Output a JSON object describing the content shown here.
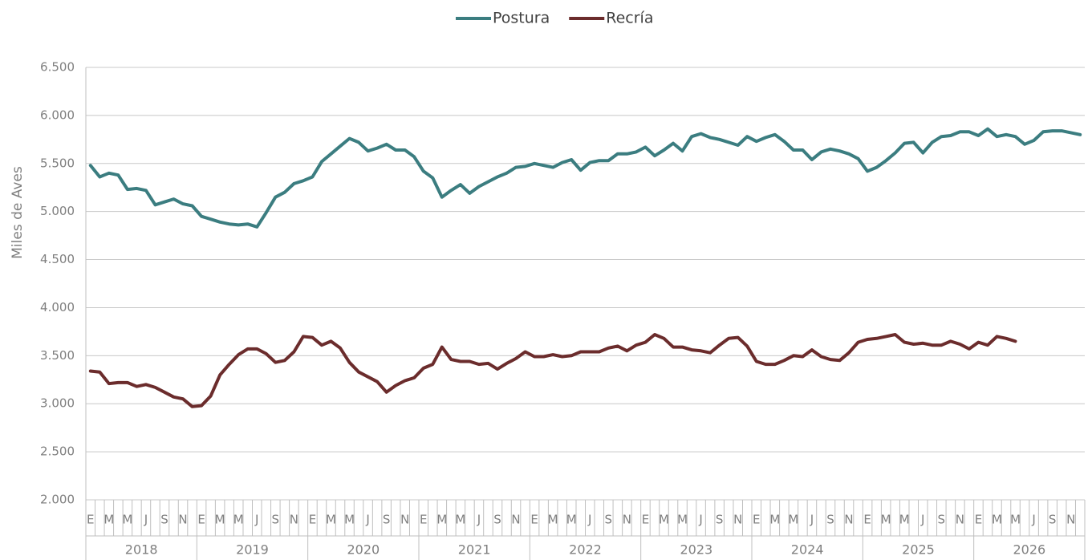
{
  "chart_data": {
    "type": "line",
    "y_label": "Miles de Aves",
    "categories": [
      "E",
      null,
      "M",
      null,
      "M",
      null,
      "J",
      null,
      "S",
      null,
      "N",
      null,
      "E",
      null,
      "M",
      null,
      "M",
      null,
      "J",
      null,
      "S",
      null,
      "N",
      null,
      "E",
      null,
      "M",
      null,
      "M",
      null,
      "J",
      null,
      "S",
      null,
      "N",
      null,
      "E",
      null,
      "M",
      null,
      "M",
      null,
      "J",
      null,
      "S",
      null,
      "N",
      null,
      "E",
      null,
      "M",
      null,
      "M",
      null,
      "J",
      null,
      "S",
      null,
      "N",
      null,
      "E",
      null,
      "M",
      null,
      "M",
      null,
      "J",
      null,
      "S",
      null,
      "N",
      null,
      "E",
      null,
      "M",
      null,
      "M",
      null,
      "J",
      null,
      "S",
      null,
      "N",
      null,
      "E",
      null,
      "M",
      null,
      "M",
      null,
      "J",
      null,
      "S",
      null,
      "N",
      null,
      "E",
      null,
      "M",
      null,
      "M",
      null,
      "J",
      null,
      "S",
      null,
      "N",
      null
    ],
    "x_groups": [
      "2018",
      "2019",
      "2020",
      "2021",
      "2022",
      "2023",
      "2024",
      "2025",
      "2026"
    ],
    "series": [
      {
        "name": "Postura",
        "color": "#3b7d80",
        "values": [
          5480,
          5360,
          5400,
          5380,
          5230,
          5240,
          5220,
          5070,
          5100,
          5130,
          5080,
          5060,
          4950,
          4920,
          4890,
          4870,
          4860,
          4870,
          4840,
          4990,
          5150,
          5200,
          5290,
          5320,
          5360,
          5520,
          5600,
          5680,
          5760,
          5720,
          5630,
          5660,
          5700,
          5640,
          5640,
          5570,
          5420,
          5350,
          5150,
          5220,
          5280,
          5190,
          5260,
          5310,
          5360,
          5400,
          5460,
          5470,
          5500,
          5480,
          5460,
          5510,
          5540,
          5430,
          5510,
          5530,
          5530,
          5600,
          5600,
          5620,
          5670,
          5580,
          5640,
          5710,
          5630,
          5780,
          5810,
          5770,
          5750,
          5720,
          5690,
          5780,
          5730,
          5770,
          5800,
          5730,
          5640,
          5640,
          5540,
          5620,
          5650,
          5630,
          5600,
          5550,
          5420,
          5460,
          5530,
          5610,
          5710,
          5720,
          5610,
          5720,
          5780,
          5790,
          5830,
          5830,
          5790,
          5860,
          5780,
          5800,
          5780,
          5700,
          5740,
          5830,
          5840,
          5840,
          5820,
          5800
        ]
      },
      {
        "name": "Recría",
        "color": "#6b2c2c",
        "values": [
          3340,
          3330,
          3210,
          3220,
          3220,
          3180,
          3200,
          3170,
          3120,
          3070,
          3050,
          2970,
          2980,
          3080,
          3300,
          3410,
          3510,
          3570,
          3570,
          3520,
          3430,
          3450,
          3540,
          3700,
          3690,
          3610,
          3650,
          3580,
          3430,
          3330,
          3280,
          3230,
          3120,
          3190,
          3240,
          3270,
          3370,
          3410,
          3590,
          3460,
          3440,
          3440,
          3410,
          3420,
          3360,
          3420,
          3470,
          3540,
          3490,
          3490,
          3510,
          3490,
          3500,
          3540,
          3540,
          3540,
          3580,
          3600,
          3550,
          3610,
          3640,
          3720,
          3680,
          3590,
          3590,
          3560,
          3550,
          3530,
          3610,
          3680,
          3690,
          3600,
          3440,
          3410,
          3410,
          3450,
          3500,
          3490,
          3560,
          3490,
          3460,
          3450,
          3530,
          3640,
          3670,
          3680,
          3700,
          3720,
          3640,
          3620,
          3630,
          3610,
          3610,
          3650,
          3620,
          3570,
          3640,
          3610,
          3700,
          3680,
          3650,
          null,
          null,
          null,
          null,
          null,
          null,
          null
        ]
      }
    ],
    "ylim": [
      2000,
      6500
    ],
    "yticks": [
      {
        "value": 2000,
        "label": "2.000"
      },
      {
        "value": 2500,
        "label": "2.500"
      },
      {
        "value": 3000,
        "label": "3.000"
      },
      {
        "value": 3500,
        "label": "3.500"
      },
      {
        "value": 4000,
        "label": "4.000"
      },
      {
        "value": 4500,
        "label": "4.500"
      },
      {
        "value": 5000,
        "label": "5.000"
      },
      {
        "value": 5500,
        "label": "5.500"
      },
      {
        "value": 6000,
        "label": "6.000"
      },
      {
        "value": 6500,
        "label": "6.500"
      }
    ],
    "grid": true
  }
}
